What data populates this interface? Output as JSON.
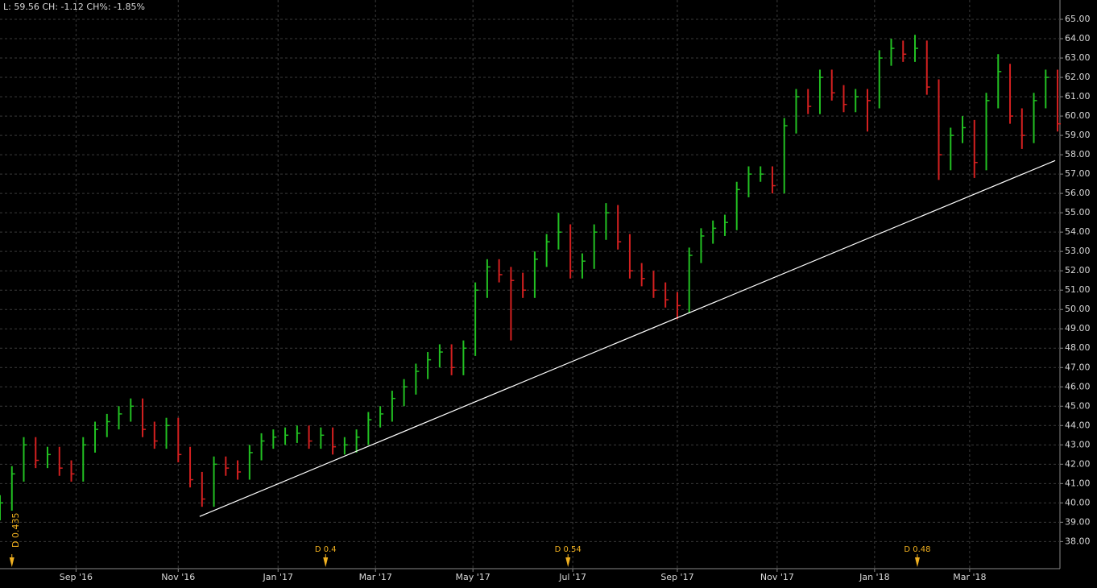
{
  "chart_data": {
    "type": "hlc",
    "status_text": "L: 59.56 CH: -1.12 CH%: -1.85%",
    "x": [
      0,
      5,
      10,
      15,
      20,
      25,
      30,
      35,
      40,
      45,
      50,
      55,
      60,
      65,
      70,
      75,
      80,
      85,
      90,
      95,
      100,
      105,
      110,
      115,
      120,
      125,
      130,
      135,
      140,
      145,
      150,
      155,
      160,
      165,
      170,
      175,
      180,
      185,
      190,
      195,
      200,
      205,
      210,
      215,
      220,
      225,
      230,
      235,
      240,
      245,
      250,
      255,
      260,
      265,
      270,
      275,
      280,
      285,
      290,
      295,
      300,
      305,
      310,
      315,
      320,
      325,
      330,
      335,
      340,
      345,
      350,
      355,
      360,
      365,
      370,
      375,
      380,
      385,
      390,
      395,
      400,
      405,
      410,
      415,
      420,
      425,
      430,
      435,
      440,
      445
    ],
    "high": [
      40.4,
      41.9,
      43.4,
      43.4,
      42.9,
      42.9,
      42.2,
      43.4,
      44.2,
      44.6,
      45.0,
      45.4,
      45.4,
      44.2,
      44.4,
      44.4,
      42.9,
      41.6,
      42.4,
      42.4,
      42.2,
      43.0,
      43.6,
      43.8,
      43.9,
      44.0,
      44.0,
      43.9,
      43.9,
      43.4,
      43.8,
      44.7,
      45.0,
      45.8,
      46.4,
      47.2,
      47.8,
      48.2,
      48.2,
      48.4,
      51.4,
      52.6,
      52.6,
      52.2,
      51.9,
      53.0,
      53.9,
      55.0,
      54.4,
      52.9,
      54.4,
      55.5,
      55.4,
      53.9,
      52.4,
      52.0,
      51.4,
      50.9,
      53.2,
      54.2,
      54.6,
      54.9,
      56.6,
      57.4,
      57.4,
      57.4,
      59.9,
      61.4,
      61.4,
      62.4,
      62.4,
      61.6,
      61.4,
      61.4,
      63.4,
      64.0,
      63.9,
      64.2,
      63.9,
      61.9,
      59.4,
      60.0,
      59.8,
      61.2,
      63.2,
      62.7,
      60.4,
      61.2,
      62.4,
      62.4
    ],
    "low": [
      39.1,
      39.6,
      41.1,
      41.8,
      41.8,
      41.4,
      41.1,
      41.1,
      42.6,
      43.4,
      43.8,
      44.2,
      43.4,
      42.8,
      42.8,
      42.1,
      40.8,
      39.8,
      39.8,
      41.4,
      41.2,
      41.2,
      42.2,
      42.8,
      43.0,
      43.1,
      42.8,
      42.8,
      42.5,
      42.5,
      42.6,
      43.0,
      43.9,
      44.2,
      45.0,
      45.6,
      46.4,
      47.0,
      46.6,
      46.6,
      47.6,
      50.6,
      51.4,
      48.4,
      50.6,
      50.6,
      52.2,
      53.1,
      51.6,
      51.6,
      52.1,
      53.6,
      53.1,
      51.6,
      51.2,
      50.6,
      50.1,
      49.5,
      49.8,
      52.4,
      53.4,
      53.8,
      54.1,
      55.8,
      56.6,
      56.0,
      56.0,
      59.1,
      60.1,
      60.1,
      60.8,
      60.2,
      60.2,
      59.2,
      60.4,
      62.6,
      62.8,
      62.8,
      61.1,
      56.7,
      57.2,
      58.6,
      56.8,
      57.2,
      60.4,
      59.6,
      58.3,
      58.6,
      60.4,
      59.2
    ],
    "close": [
      40.0,
      41.5,
      43.0,
      42.2,
      42.5,
      41.8,
      41.5,
      43.0,
      43.8,
      44.2,
      44.6,
      45.0,
      43.8,
      43.2,
      44.0,
      42.5,
      41.2,
      40.2,
      42.0,
      41.8,
      41.6,
      42.6,
      43.2,
      43.4,
      43.5,
      43.6,
      43.2,
      43.5,
      42.9,
      43.0,
      43.4,
      44.3,
      44.6,
      45.4,
      46.0,
      46.8,
      47.4,
      47.8,
      47.0,
      48.0,
      51.0,
      52.2,
      51.8,
      51.5,
      51.0,
      52.6,
      53.5,
      54.0,
      52.0,
      52.5,
      54.0,
      55.0,
      53.5,
      52.0,
      51.6,
      51.0,
      50.5,
      50.2,
      52.8,
      53.8,
      54.2,
      54.5,
      56.2,
      57.0,
      57.0,
      56.4,
      59.5,
      61.0,
      60.5,
      62.0,
      61.2,
      60.6,
      61.0,
      60.8,
      63.0,
      63.5,
      63.2,
      63.5,
      61.5,
      58.0,
      59.0,
      59.4,
      57.6,
      60.8,
      62.3,
      60.0,
      59.0,
      60.8,
      62.0,
      59.6
    ],
    "up_color": "#22c022",
    "down_color": "#d42020",
    "trendline": {
      "x": [
        84,
        444
      ],
      "values": [
        39.3,
        57.7
      ],
      "color": "#ffffff"
    },
    "annotations": [
      {
        "x": 5,
        "label": "D 0.435"
      },
      {
        "x": 137,
        "label": "D 0.4"
      },
      {
        "x": 239,
        "label": "D 0.54"
      },
      {
        "x": 386,
        "label": "D 0.48"
      }
    ],
    "annotation_color": "#f0b020",
    "xlim": [
      0,
      446
    ],
    "xticks": [
      {
        "value": 32,
        "label": "Sep '16"
      },
      {
        "value": 75,
        "label": "Nov '16"
      },
      {
        "value": 117,
        "label": "Jan '17"
      },
      {
        "value": 158,
        "label": "Mar '17"
      },
      {
        "value": 199,
        "label": "May '17"
      },
      {
        "value": 241,
        "label": "Jul '17"
      },
      {
        "value": 285,
        "label": "Sep '17"
      },
      {
        "value": 327,
        "label": "Nov '17"
      },
      {
        "value": 368,
        "label": "Jan '18"
      },
      {
        "value": 408,
        "label": "Mar '18"
      }
    ],
    "ylim": [
      36.6,
      66.0
    ],
    "yticks": [
      {
        "value": 38,
        "label": "38.00"
      },
      {
        "value": 39,
        "label": "39.00"
      },
      {
        "value": 40,
        "label": "40.00"
      },
      {
        "value": 41,
        "label": "41.00"
      },
      {
        "value": 42,
        "label": "42.00"
      },
      {
        "value": 43,
        "label": "43.00"
      },
      {
        "value": 44,
        "label": "44.00"
      },
      {
        "value": 45,
        "label": "45.00"
      },
      {
        "value": 46,
        "label": "46.00"
      },
      {
        "value": 47,
        "label": "47.00"
      },
      {
        "value": 48,
        "label": "48.00"
      },
      {
        "value": 49,
        "label": "49.00"
      },
      {
        "value": 50,
        "label": "50.00"
      },
      {
        "value": 51,
        "label": "51.00"
      },
      {
        "value": 52,
        "label": "52.00"
      },
      {
        "value": 53,
        "label": "53.00"
      },
      {
        "value": 54,
        "label": "54.00"
      },
      {
        "value": 55,
        "label": "55.00"
      },
      {
        "value": 56,
        "label": "56.00"
      },
      {
        "value": 57,
        "label": "57.00"
      },
      {
        "value": 58,
        "label": "58.00"
      },
      {
        "value": 59,
        "label": "59.00"
      },
      {
        "value": 60,
        "label": "60.00"
      },
      {
        "value": 61,
        "label": "61.00"
      },
      {
        "value": 62,
        "label": "62.00"
      },
      {
        "value": 63,
        "label": "63.00"
      },
      {
        "value": 64,
        "label": "64.00"
      },
      {
        "value": 65,
        "label": "65.00"
      }
    ],
    "grid": true
  }
}
